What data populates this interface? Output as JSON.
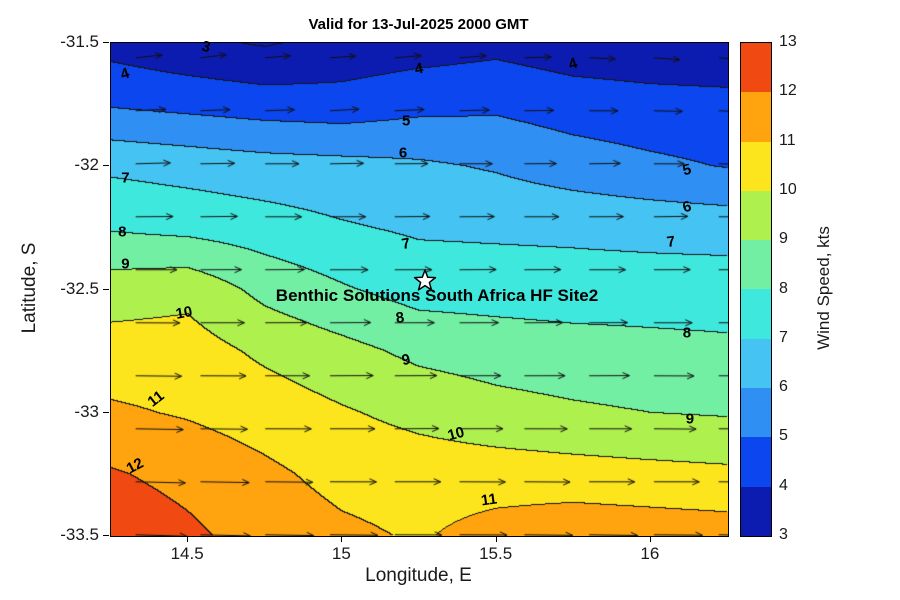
{
  "title": "Valid for 13-Jul-2025 2000 GMT",
  "axes": {
    "xlabel": "Longitude, E",
    "ylabel": "Latitude, S"
  },
  "site": {
    "label": "Benthic Solutions South Africa HF Site2",
    "lon": 15.27,
    "lat": -32.47,
    "label_lon": 15.31,
    "label_lat": -32.53,
    "marker": "star-icon"
  },
  "colorbar": {
    "label": "Wind Speed, kts",
    "ticks": [
      {
        "label": "3",
        "value": 3
      },
      {
        "label": "4",
        "value": 4
      },
      {
        "label": "5",
        "value": 5
      },
      {
        "label": "6",
        "value": 6
      },
      {
        "label": "7",
        "value": 7
      },
      {
        "label": "8",
        "value": 8
      },
      {
        "label": "9",
        "value": 9
      },
      {
        "label": "10",
        "value": 10
      },
      {
        "label": "11",
        "value": 11
      },
      {
        "label": "12",
        "value": 12
      },
      {
        "label": "13",
        "value": 13
      }
    ]
  },
  "chart_data": {
    "type": "heatmap",
    "subtype": "filled-contour-with-quiver",
    "title": "Valid for 13-Jul-2025 2000 GMT",
    "xlabel": "Longitude, E",
    "ylabel": "Latitude, S",
    "xlim": [
      14.25,
      16.25
    ],
    "ylim": [
      -33.5,
      -31.5
    ],
    "x_ticks": [
      {
        "label": "14.5",
        "value": 14.5
      },
      {
        "label": "15",
        "value": 15
      },
      {
        "label": "15.5",
        "value": 15.5
      },
      {
        "label": "16",
        "value": 16
      }
    ],
    "y_ticks": [
      {
        "label": "-31.5",
        "value": -31.5
      },
      {
        "label": "-32",
        "value": -32
      },
      {
        "label": "-32.5",
        "value": -32.5
      },
      {
        "label": "-33",
        "value": -33
      },
      {
        "label": "-33.5",
        "value": -33.5
      }
    ],
    "levels": [
      3,
      4,
      5,
      6,
      7,
      8,
      9,
      10,
      11,
      12,
      13
    ],
    "colormap": [
      "#0d1cb0",
      "#0b46ee",
      "#2f8ff2",
      "#45c3f2",
      "#3fe8dd",
      "#73efa4",
      "#aef04e",
      "#fce51c",
      "#ffa40e",
      "#f04a12"
    ],
    "contour_line_color": "#141414",
    "lon": [
      14.25,
      14.5,
      14.75,
      15.0,
      15.25,
      15.5,
      15.75,
      16.0,
      16.25
    ],
    "lat": [
      -31.5,
      -31.75,
      -32.0,
      -32.25,
      -32.5,
      -32.75,
      -33.0,
      -33.25,
      -33.5
    ],
    "wind_speed_kts": [
      [
        3.6,
        3.2,
        2.9,
        3.3,
        3.5,
        3.7,
        3.4,
        3.3,
        3.2
      ],
      [
        4.9,
        4.7,
        4.5,
        4.4,
        4.7,
        4.8,
        4.5,
        4.35,
        4.3
      ],
      [
        6.8,
        6.6,
        6.4,
        6.3,
        6.15,
        5.9,
        5.5,
        5.2,
        4.95
      ],
      [
        7.9,
        7.7,
        7.45,
        7.1,
        6.85,
        6.8,
        6.75,
        6.65,
        6.57
      ],
      [
        9.5,
        9.7,
        8.7,
        8.1,
        7.6,
        7.55,
        7.5,
        7.5,
        7.51
      ],
      [
        10.43,
        10.45,
        9.8,
        9.3,
        8.76,
        8.55,
        8.4,
        8.3,
        8.2
      ],
      [
        11.15,
        10.9,
        10.55,
        10.1,
        9.7,
        9.35,
        9.15,
        9.0,
        8.91
      ],
      [
        12.1,
        11.7,
        11.2,
        10.7,
        10.55,
        10.5,
        10.4,
        10.3,
        10.2
      ],
      [
        12.7,
        12.2,
        11.6,
        11.2,
        10.9,
        11.4,
        11.7,
        11.6,
        11.5
      ]
    ],
    "quiver_v_kts": [
      [
        0.4,
        0.5,
        0.3,
        0.2,
        0.4,
        0.3,
        -0.2,
        -0.3,
        -0.4
      ],
      [
        0.3,
        0.2,
        0.2,
        0.3,
        0.2,
        0.1,
        0.0,
        -0.1,
        -0.2
      ],
      [
        0.2,
        0.1,
        0.0,
        0.1,
        0.0,
        0.0,
        0.1,
        0.0,
        -0.1
      ],
      [
        0.0,
        0.1,
        0.0,
        0.0,
        0.1,
        0.0,
        0.0,
        0.1,
        0.0
      ],
      [
        0.0,
        0.0,
        0.1,
        0.0,
        0.0,
        0.1,
        0.0,
        0.0,
        0.1
      ],
      [
        -0.1,
        0.0,
        0.0,
        0.1,
        0.0,
        0.0,
        0.1,
        0.0,
        0.0
      ],
      [
        -0.2,
        -0.1,
        0.0,
        0.0,
        0.1,
        0.0,
        0.0,
        -0.1,
        0.0
      ],
      [
        -0.3,
        -0.2,
        -0.1,
        0.0,
        0.0,
        -0.1,
        0.0,
        0.0,
        -0.1
      ],
      [
        -0.4,
        -0.3,
        -0.2,
        -0.1,
        0.0,
        -0.1,
        -0.2,
        -0.1,
        -0.2
      ]
    ],
    "contour_labels": [
      {
        "text": "3",
        "lon": 14.56,
        "lat": -31.52,
        "rot": 12
      },
      {
        "text": "4",
        "lon": 14.3,
        "lat": -31.63,
        "rot": -18
      },
      {
        "text": "4",
        "lon": 15.25,
        "lat": -31.61,
        "rot": -10
      },
      {
        "text": "4",
        "lon": 15.75,
        "lat": -31.59,
        "rot": -18
      },
      {
        "text": "5",
        "lon": 15.21,
        "lat": -31.82,
        "rot": 0
      },
      {
        "text": "5",
        "lon": 16.12,
        "lat": -32.02,
        "rot": -14
      },
      {
        "text": "6",
        "lon": 15.2,
        "lat": -31.95,
        "rot": 0
      },
      {
        "text": "6",
        "lon": 16.12,
        "lat": -32.17,
        "rot": -16
      },
      {
        "text": "7",
        "lon": 14.3,
        "lat": -32.05,
        "rot": 0
      },
      {
        "text": "7",
        "lon": 15.21,
        "lat": -32.32,
        "rot": -10
      },
      {
        "text": "7",
        "lon": 16.07,
        "lat": -32.31,
        "rot": -8
      },
      {
        "text": "8",
        "lon": 14.29,
        "lat": -32.27,
        "rot": 0
      },
      {
        "text": "8",
        "lon": 15.19,
        "lat": -32.62,
        "rot": -8
      },
      {
        "text": "8",
        "lon": 16.12,
        "lat": -32.68,
        "rot": 0
      },
      {
        "text": "9",
        "lon": 14.3,
        "lat": -32.4,
        "rot": 0
      },
      {
        "text": "9",
        "lon": 15.21,
        "lat": -32.79,
        "rot": -12
      },
      {
        "text": "9",
        "lon": 16.13,
        "lat": -33.03,
        "rot": 0
      },
      {
        "text": "10",
        "lon": 14.49,
        "lat": -32.6,
        "rot": -10
      },
      {
        "text": "10",
        "lon": 15.37,
        "lat": -33.09,
        "rot": -15
      },
      {
        "text": "11",
        "lon": 14.4,
        "lat": -32.95,
        "rot": -38
      },
      {
        "text": "11",
        "lon": 15.48,
        "lat": -33.36,
        "rot": -8
      },
      {
        "text": "12",
        "lon": 14.33,
        "lat": -33.22,
        "rot": -28
      }
    ]
  }
}
